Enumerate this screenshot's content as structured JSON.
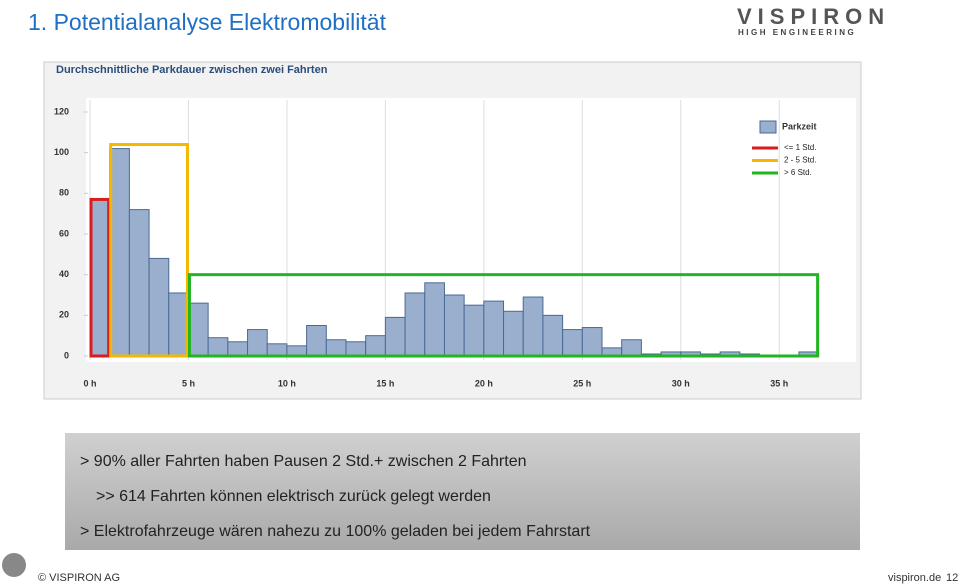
{
  "slide": {
    "title": "1. Potentialanalyse Elektromobilität",
    "logo": "VISPIRON",
    "logo_sub": "HIGH ENGINEERING",
    "bullets": [
      "> 90% aller Fahrten haben Pausen 2 Std.+ zwischen 2 Fahrten",
      ">> 614 Fahrten können elektrisch zurück gelegt werden",
      "> Elektrofahrzeuge wären nahezu zu 100% geladen bei jedem Fahrstart"
    ],
    "footer_left": "© VISPIRON AG",
    "footer_right": "vispiron.de",
    "page": "12"
  },
  "chart_data": {
    "type": "histogram",
    "title": "Durchschnittliche Parkdauer zwischen zwei Fahrten",
    "bins": [
      0,
      1,
      2,
      3,
      4,
      5,
      6,
      7,
      8,
      9,
      10,
      11,
      12,
      13,
      14,
      15,
      16,
      17,
      18,
      19,
      20,
      21,
      22,
      23,
      24,
      25,
      26,
      27,
      28,
      29,
      30,
      31,
      32,
      33,
      34,
      35,
      36,
      37
    ],
    "series": [
      {
        "name": "Parkzeit",
        "color": "#9aafcd",
        "values": [
          77,
          102,
          72,
          48,
          31,
          26,
          9,
          7,
          13,
          6,
          5,
          15,
          8,
          7,
          10,
          19,
          31,
          36,
          30,
          25,
          27,
          22,
          29,
          20,
          13,
          14,
          4,
          8,
          1,
          2,
          2,
          1,
          2,
          1,
          0,
          0,
          2
        ]
      }
    ],
    "xlim": [
      0,
      39
    ],
    "xticks": [
      {
        "value": 0,
        "label": "0 h"
      },
      {
        "value": 5,
        "label": "5 h"
      },
      {
        "value": 10,
        "label": "10 h"
      },
      {
        "value": 15,
        "label": "15 h"
      },
      {
        "value": 20,
        "label": "20 h"
      },
      {
        "value": 25,
        "label": "25 h"
      },
      {
        "value": 30,
        "label": "30 h"
      },
      {
        "value": 35,
        "label": "35 h"
      }
    ],
    "ylim": [
      0,
      120
    ],
    "yticks": [
      0,
      20,
      40,
      60,
      80,
      100,
      120
    ],
    "grid": "x",
    "ranges": [
      {
        "name": "<= 1 Std.",
        "color": "#d91c1c",
        "start": 0,
        "end": 1,
        "height": 77
      },
      {
        "name": "2 - 5 Std.",
        "color": "#f5b800",
        "start": 1,
        "end": 5,
        "height": 104
      },
      {
        "name": "> 6 Std.",
        "color": "#22b522",
        "start": 5,
        "end": 37,
        "height": 40
      }
    ],
    "legend": "top-right"
  }
}
